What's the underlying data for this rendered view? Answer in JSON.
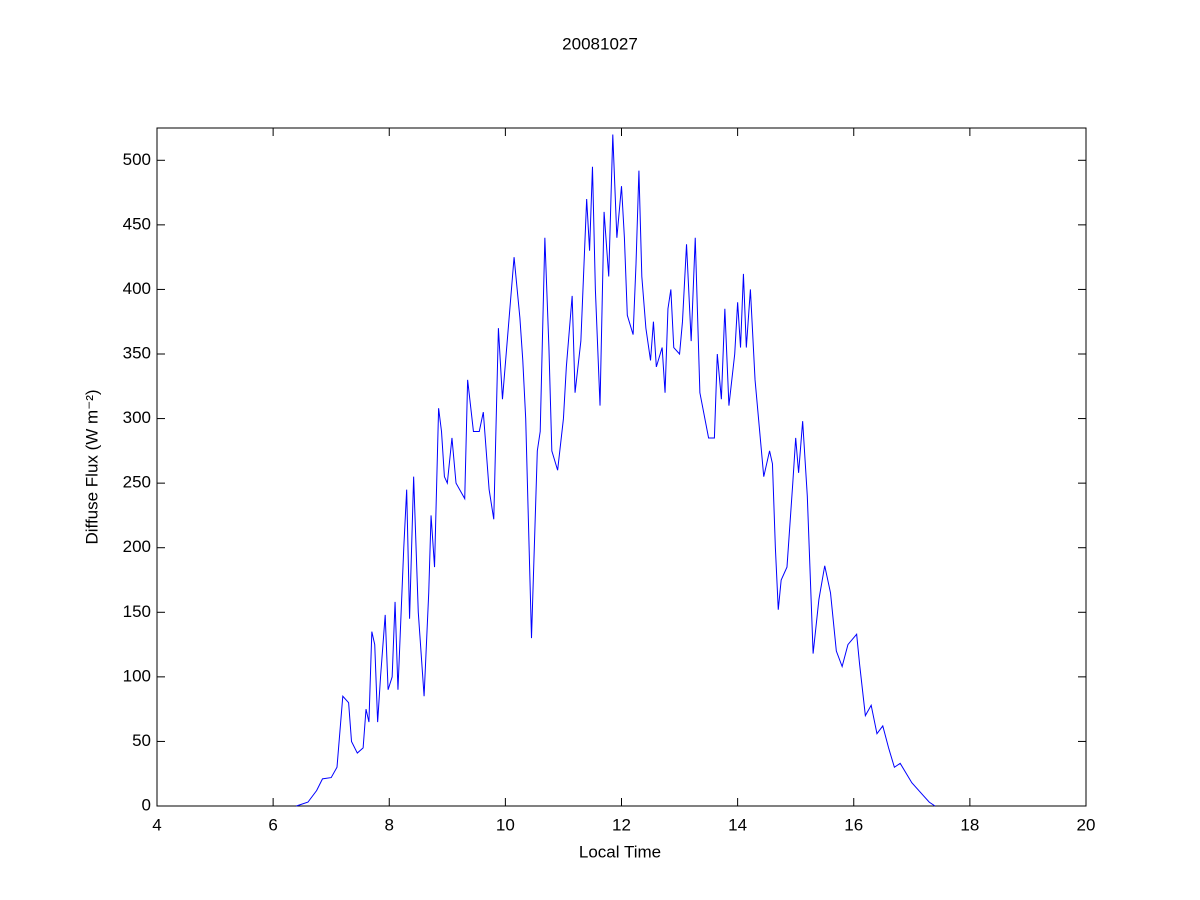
{
  "chart_data": {
    "type": "line",
    "title": "20081027",
    "xlabel": "Local Time",
    "ylabel": "Diffuse Flux (W m⁻²)",
    "color": "#0000ff",
    "xlim": [
      4,
      20
    ],
    "xticks": [
      4,
      6,
      8,
      10,
      12,
      14,
      16,
      18,
      20
    ],
    "ylim": [
      0,
      525
    ],
    "yticks": [
      0,
      50,
      100,
      150,
      200,
      250,
      300,
      350,
      400,
      450,
      500
    ],
    "x": [
      6.4,
      6.6,
      6.75,
      6.85,
      7.0,
      7.1,
      7.2,
      7.3,
      7.35,
      7.45,
      7.55,
      7.6,
      7.65,
      7.7,
      7.75,
      7.8,
      7.85,
      7.93,
      7.98,
      8.05,
      8.1,
      8.15,
      8.25,
      8.3,
      8.35,
      8.42,
      8.5,
      8.6,
      8.68,
      8.72,
      8.78,
      8.85,
      8.9,
      8.95,
      9.0,
      9.08,
      9.15,
      9.3,
      9.35,
      9.45,
      9.55,
      9.62,
      9.72,
      9.8,
      9.88,
      9.95,
      10.05,
      10.15,
      10.25,
      10.3,
      10.35,
      10.45,
      10.55,
      10.6,
      10.68,
      10.75,
      10.8,
      10.9,
      11.0,
      11.05,
      11.15,
      11.2,
      11.3,
      11.4,
      11.45,
      11.5,
      11.55,
      11.63,
      11.7,
      11.78,
      11.85,
      11.92,
      12.0,
      12.05,
      12.1,
      12.2,
      12.25,
      12.3,
      12.35,
      12.42,
      12.5,
      12.55,
      12.6,
      12.7,
      12.75,
      12.8,
      12.85,
      12.9,
      13.0,
      13.05,
      13.12,
      13.2,
      13.27,
      13.35,
      13.5,
      13.6,
      13.65,
      13.72,
      13.78,
      13.85,
      13.95,
      14.0,
      14.05,
      14.1,
      14.15,
      14.22,
      14.3,
      14.45,
      14.55,
      14.6,
      14.65,
      14.7,
      14.75,
      14.85,
      14.95,
      15.0,
      15.05,
      15.12,
      15.2,
      15.3,
      15.4,
      15.5,
      15.6,
      15.7,
      15.8,
      15.9,
      16.05,
      16.1,
      16.2,
      16.3,
      16.4,
      16.5,
      16.6,
      16.7,
      16.8,
      17.0,
      17.2,
      17.3,
      17.4
    ],
    "values": [
      0,
      3,
      12,
      21,
      22,
      30,
      85,
      80,
      50,
      41,
      45,
      75,
      65,
      135,
      125,
      65,
      100,
      148,
      90,
      100,
      158,
      90,
      200,
      245,
      145,
      255,
      150,
      85,
      165,
      225,
      185,
      308,
      290,
      255,
      250,
      285,
      250,
      238,
      330,
      290,
      290,
      305,
      245,
      222,
      370,
      315,
      370,
      425,
      378,
      345,
      300,
      130,
      275,
      290,
      440,
      355,
      275,
      260,
      300,
      340,
      395,
      320,
      360,
      470,
      430,
      495,
      400,
      310,
      460,
      410,
      520,
      440,
      480,
      440,
      380,
      365,
      420,
      492,
      410,
      370,
      345,
      375,
      340,
      355,
      320,
      385,
      400,
      355,
      350,
      375,
      435,
      360,
      440,
      320,
      285,
      285,
      350,
      315,
      385,
      310,
      350,
      390,
      355,
      412,
      355,
      400,
      330,
      255,
      275,
      265,
      200,
      152,
      175,
      185,
      250,
      285,
      258,
      298,
      240,
      118,
      160,
      186,
      165,
      120,
      108,
      125,
      133,
      110,
      70,
      78,
      56,
      62,
      45,
      30,
      33,
      18,
      8,
      3,
      0
    ]
  }
}
